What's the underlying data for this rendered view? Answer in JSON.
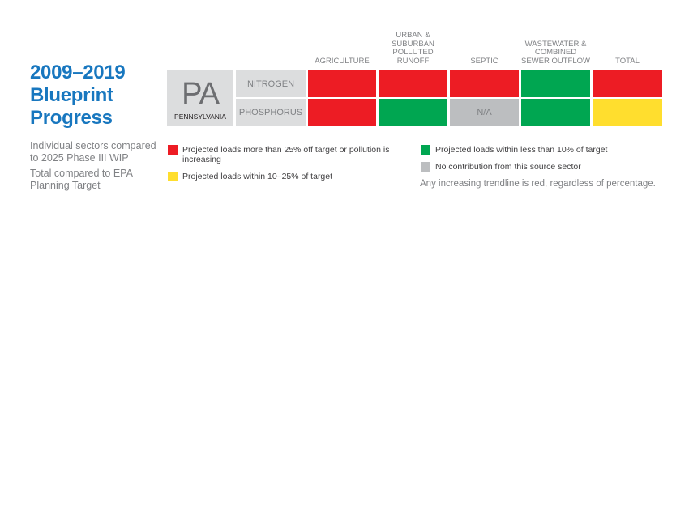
{
  "title": "2009–2019 Blueprint Progress",
  "notes": [
    "Individual sectors compared to 2025 Phase III WIP",
    "Total compared to EPA Planning Target"
  ],
  "state": {
    "abbr": "PA",
    "name": "PENNSYLVANIA"
  },
  "columns": [
    "AGRICULTURE",
    "URBAN & SUBURBAN POLLUTED RUNOFF",
    "SEPTIC",
    "WASTEWATER & COMBINED SEWER OUTFLOW",
    "TOTAL"
  ],
  "rows": [
    {
      "label": "NITROGEN",
      "cells": [
        {
          "status": "red",
          "text": ""
        },
        {
          "status": "red",
          "text": ""
        },
        {
          "status": "red",
          "text": ""
        },
        {
          "status": "green",
          "text": ""
        },
        {
          "status": "red",
          "text": ""
        }
      ]
    },
    {
      "label": "PHOSPHORUS",
      "cells": [
        {
          "status": "red",
          "text": ""
        },
        {
          "status": "green",
          "text": ""
        },
        {
          "status": "gray",
          "text": "N/A"
        },
        {
          "status": "green",
          "text": ""
        },
        {
          "status": "yellow",
          "text": ""
        }
      ]
    }
  ],
  "colors": {
    "red": "#ed1c24",
    "green": "#00a651",
    "yellow": "#ffde2e",
    "gray": "#bcbec0"
  },
  "legend": [
    {
      "status": "red",
      "text": "Projected loads more than 25% off target or pollution is increasing"
    },
    {
      "status": "yellow",
      "text": "Projected loads within 10–25% of target"
    },
    {
      "status": "green",
      "text": "Projected loads within less than 10% of target"
    },
    {
      "status": "gray",
      "text": "No contribution from this source sector"
    }
  ],
  "footnote": "Any increasing trendline is red, regardless of percentage."
}
